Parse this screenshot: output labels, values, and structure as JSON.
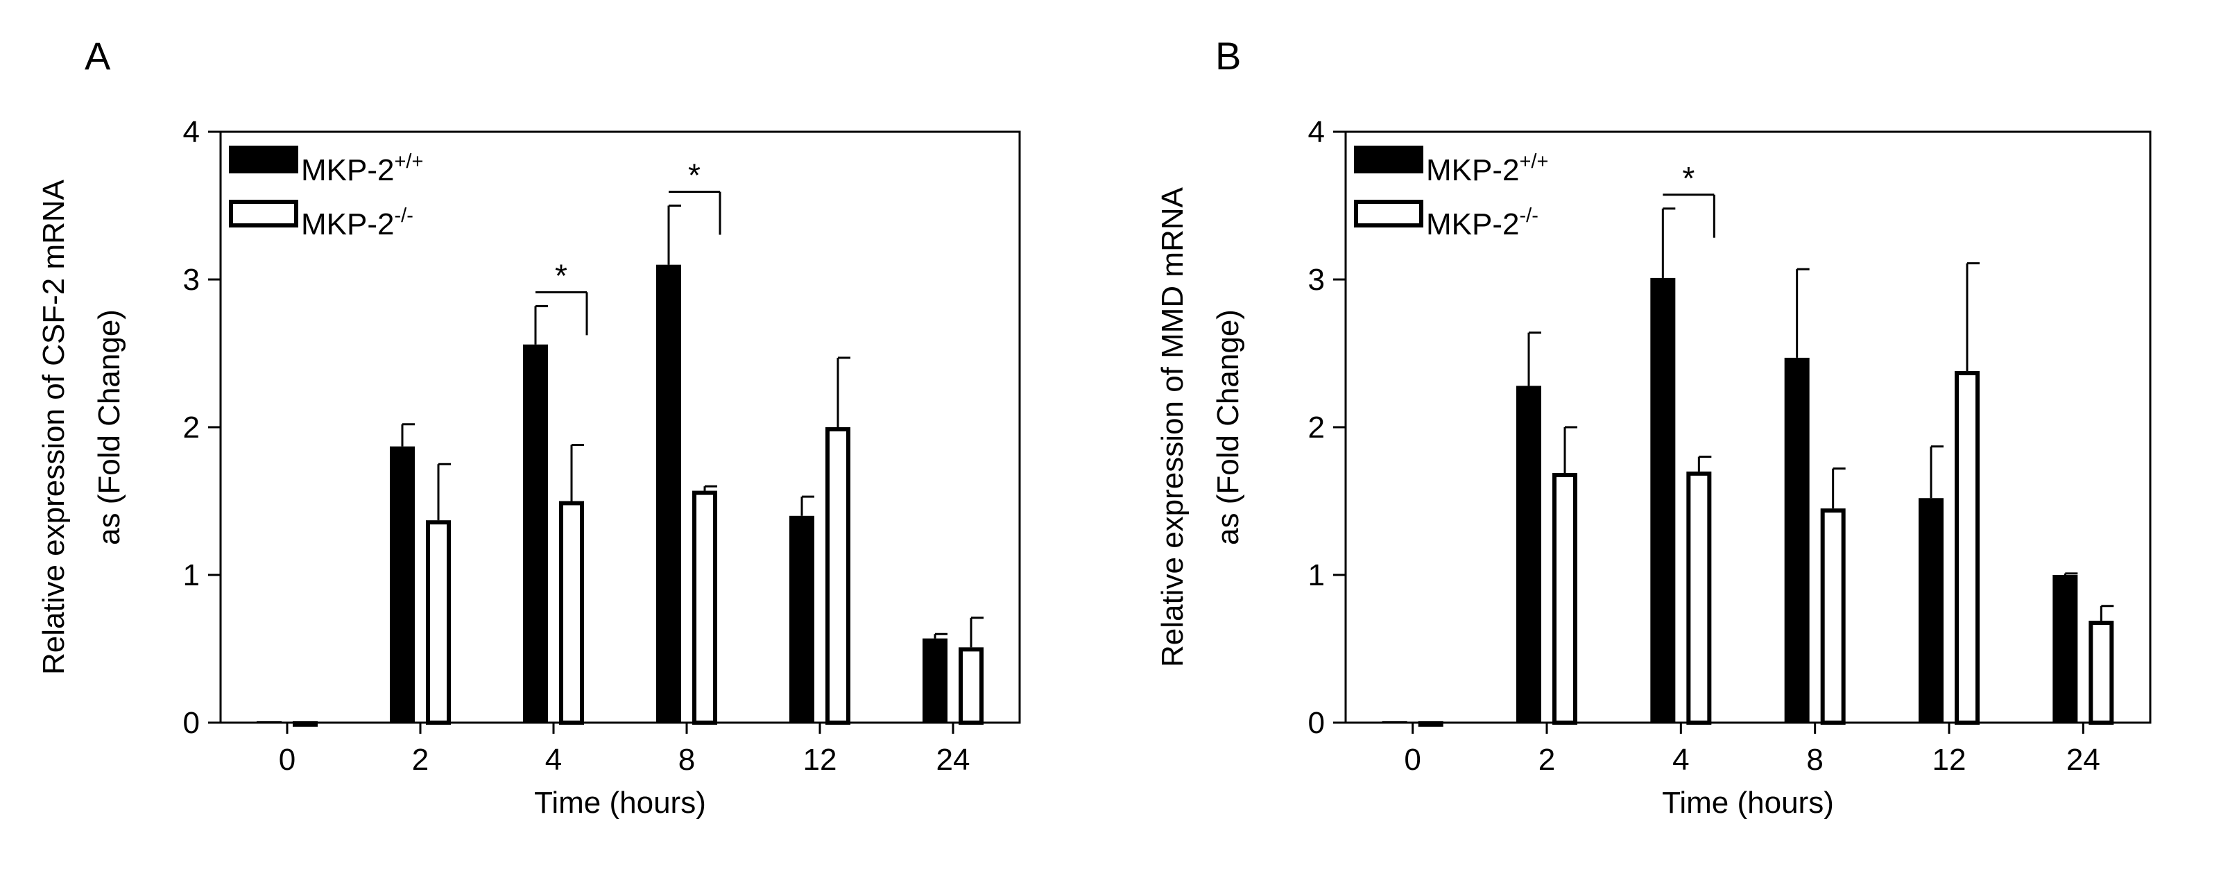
{
  "chart_data": [
    {
      "panel_label": "A",
      "type": "bar",
      "title": "",
      "xlabel": "Time (hours)",
      "ylabel_line1": "Relative expression of CSF-2 mRNA",
      "ylabel_line2": "as (Fold Change)",
      "ylim": [
        0,
        4
      ],
      "yticks": [
        "0",
        "1",
        "2",
        "3",
        "4"
      ],
      "categories": [
        "0",
        "2",
        "4",
        "8",
        "12",
        "24"
      ],
      "series": [
        {
          "name": "MKP-2",
          "sup": "+/+",
          "color": "#000000",
          "fill": "solid",
          "values": [
            0.01,
            1.87,
            2.56,
            3.1,
            1.4,
            0.57
          ],
          "errors": [
            0.0,
            0.15,
            0.26,
            0.4,
            0.13,
            0.03
          ]
        },
        {
          "name": "MKP-2",
          "sup": "-/-",
          "color": "#000000",
          "fill": "hollow",
          "values": [
            0.01,
            1.37,
            1.5,
            1.57,
            2.0,
            0.51
          ],
          "errors": [
            0.0,
            0.38,
            0.38,
            0.03,
            0.47,
            0.2
          ]
        }
      ],
      "significance": [
        {
          "category_index": 2,
          "label": "*"
        },
        {
          "category_index": 3,
          "label": "*"
        }
      ],
      "legend_position": "top-left",
      "grid": false
    },
    {
      "panel_label": "B",
      "type": "bar",
      "title": "",
      "xlabel": "Time (hours)",
      "ylabel_line1": "Relative expression of MMD mRNA",
      "ylabel_line2": "as (Fold Change)",
      "ylim": [
        0,
        4
      ],
      "yticks": [
        "0",
        "1",
        "2",
        "3",
        "4"
      ],
      "categories": [
        "0",
        "2",
        "4",
        "8",
        "12",
        "24"
      ],
      "series": [
        {
          "name": "MKP-2",
          "sup": "+/+",
          "color": "#000000",
          "fill": "solid",
          "values": [
            0.01,
            2.28,
            3.01,
            2.47,
            1.52,
            1.0
          ],
          "errors": [
            0.0,
            0.36,
            0.47,
            0.6,
            0.35,
            0.01
          ]
        },
        {
          "name": "MKP-2",
          "sup": "-/-",
          "color": "#000000",
          "fill": "hollow",
          "values": [
            0.01,
            1.69,
            1.7,
            1.45,
            2.38,
            0.69
          ],
          "errors": [
            0.0,
            0.31,
            0.1,
            0.27,
            0.73,
            0.1
          ]
        }
      ],
      "significance": [
        {
          "category_index": 2,
          "label": "*"
        }
      ],
      "legend_position": "top-left",
      "grid": false
    }
  ]
}
